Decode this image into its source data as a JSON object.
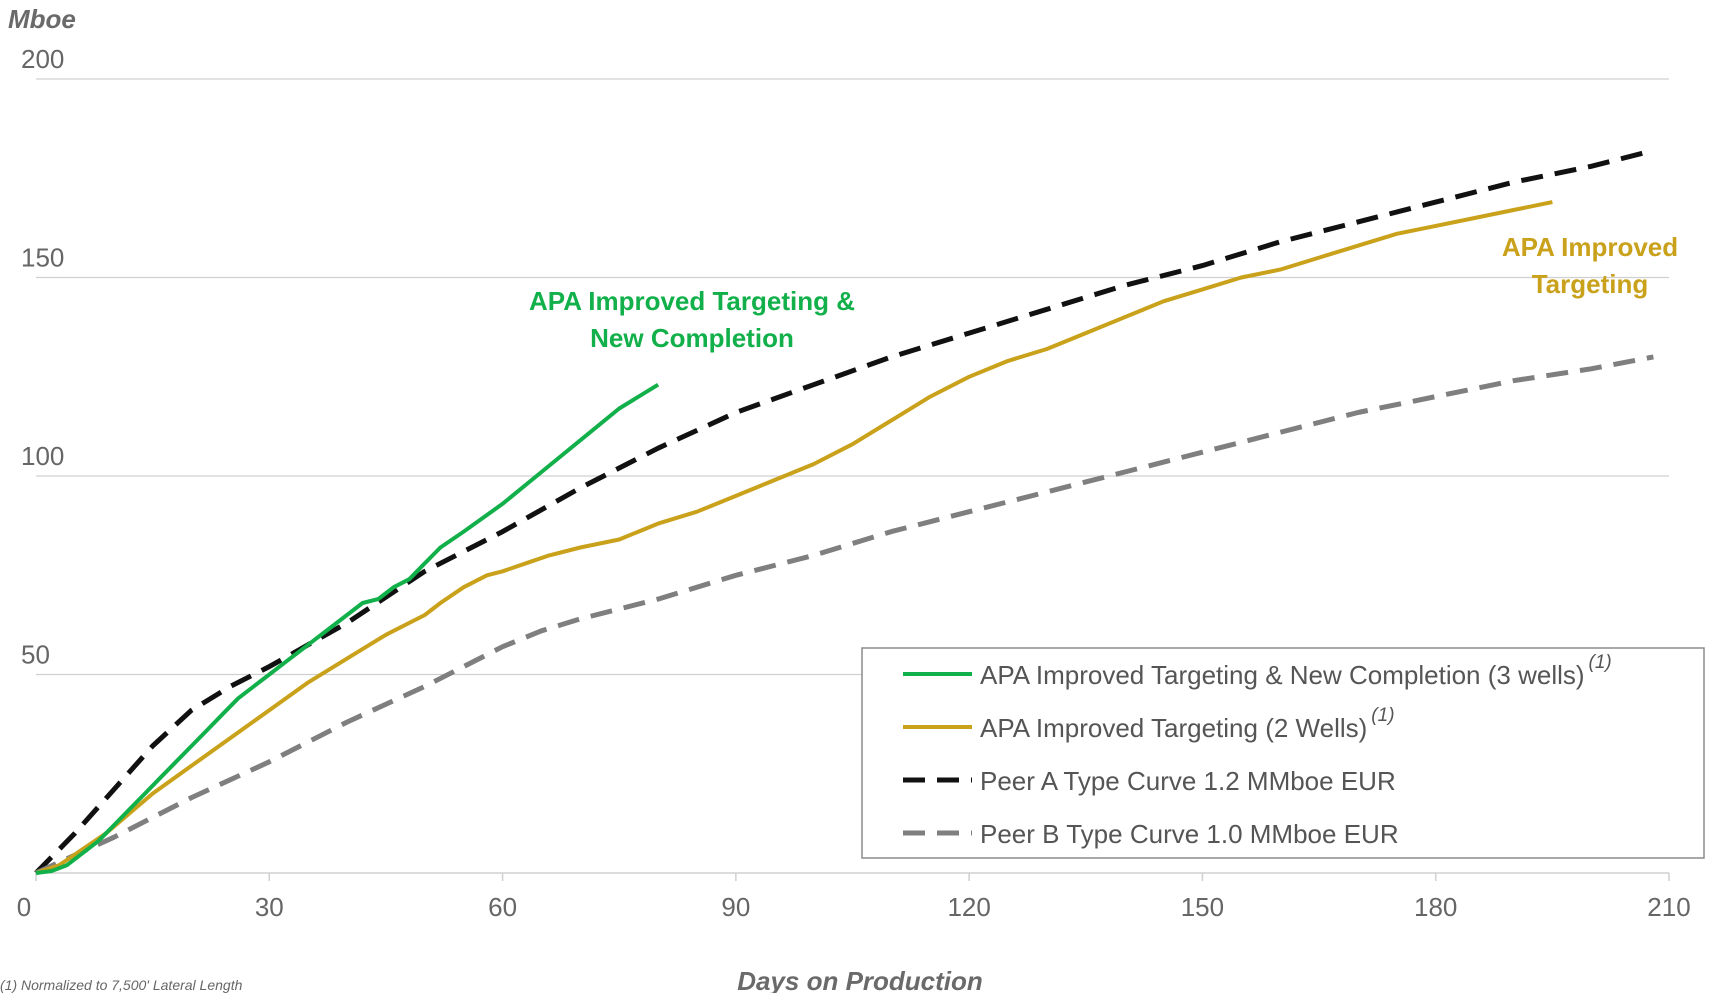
{
  "chart_data": {
    "type": "line",
    "title": "",
    "ylabel": "Mboe",
    "xlabel": "Days on Production",
    "xlim": [
      0,
      210
    ],
    "ylim": [
      0,
      200
    ],
    "x_ticks": [
      0,
      30,
      60,
      90,
      120,
      150,
      180,
      210
    ],
    "y_ticks": [
      50,
      100,
      150,
      200
    ],
    "grid": "horizontal",
    "legend_position": "bottom-right",
    "series": [
      {
        "name": "APA Improved Targeting & New Completion (3 wells)",
        "footnote_ref": "(1)",
        "color": "#12b04a",
        "style": "solid",
        "points": [
          [
            0,
            0
          ],
          [
            2,
            0.5
          ],
          [
            4,
            2
          ],
          [
            6,
            5
          ],
          [
            8,
            8
          ],
          [
            10,
            12
          ],
          [
            12,
            16
          ],
          [
            14,
            20
          ],
          [
            16,
            24
          ],
          [
            18,
            28
          ],
          [
            20,
            32
          ],
          [
            22,
            36
          ],
          [
            24,
            40
          ],
          [
            26,
            44
          ],
          [
            28,
            47
          ],
          [
            30,
            50
          ],
          [
            32,
            53
          ],
          [
            34,
            56
          ],
          [
            36,
            59
          ],
          [
            38,
            62
          ],
          [
            40,
            65
          ],
          [
            42,
            68
          ],
          [
            44,
            69
          ],
          [
            46,
            72
          ],
          [
            48,
            74
          ],
          [
            50,
            78
          ],
          [
            52,
            82
          ],
          [
            55,
            86
          ],
          [
            60,
            93
          ],
          [
            65,
            101
          ],
          [
            70,
            109
          ],
          [
            75,
            117
          ],
          [
            80,
            123
          ]
        ]
      },
      {
        "name": "APA Improved Targeting (2 Wells)",
        "footnote_ref": "(1)",
        "color": "#c9a11a",
        "style": "solid",
        "points": [
          [
            0,
            0
          ],
          [
            3,
            2
          ],
          [
            6,
            6
          ],
          [
            9,
            10
          ],
          [
            12,
            15
          ],
          [
            15,
            20
          ],
          [
            20,
            27
          ],
          [
            25,
            34
          ],
          [
            30,
            41
          ],
          [
            35,
            48
          ],
          [
            40,
            54
          ],
          [
            45,
            60
          ],
          [
            48,
            63
          ],
          [
            50,
            65
          ],
          [
            52,
            68
          ],
          [
            55,
            72
          ],
          [
            58,
            75
          ],
          [
            60,
            76
          ],
          [
            63,
            78
          ],
          [
            66,
            80
          ],
          [
            70,
            82
          ],
          [
            75,
            84
          ],
          [
            80,
            88
          ],
          [
            85,
            91
          ],
          [
            90,
            95
          ],
          [
            95,
            99
          ],
          [
            100,
            103
          ],
          [
            105,
            108
          ],
          [
            110,
            114
          ],
          [
            115,
            120
          ],
          [
            120,
            125
          ],
          [
            125,
            129
          ],
          [
            130,
            132
          ],
          [
            135,
            136
          ],
          [
            140,
            140
          ],
          [
            145,
            144
          ],
          [
            150,
            147
          ],
          [
            155,
            150
          ],
          [
            160,
            152
          ],
          [
            165,
            155
          ],
          [
            170,
            158
          ],
          [
            175,
            161
          ],
          [
            180,
            163
          ],
          [
            185,
            165
          ],
          [
            190,
            167
          ],
          [
            195,
            169
          ]
        ]
      },
      {
        "name": "Peer A Type Curve 1.2 MMboe EUR",
        "color": "#111111",
        "style": "dashed",
        "points": [
          [
            0,
            0
          ],
          [
            5,
            10
          ],
          [
            10,
            21
          ],
          [
            15,
            32
          ],
          [
            20,
            41
          ],
          [
            25,
            47
          ],
          [
            30,
            52
          ],
          [
            40,
            63
          ],
          [
            50,
            76
          ],
          [
            60,
            86
          ],
          [
            70,
            97
          ],
          [
            80,
            107
          ],
          [
            90,
            116
          ],
          [
            100,
            123
          ],
          [
            110,
            130
          ],
          [
            120,
            136
          ],
          [
            130,
            142
          ],
          [
            140,
            148
          ],
          [
            150,
            153
          ],
          [
            160,
            159
          ],
          [
            170,
            164
          ],
          [
            180,
            169
          ],
          [
            190,
            174
          ],
          [
            200,
            178
          ],
          [
            208,
            182
          ]
        ]
      },
      {
        "name": "Peer B Type Curve 1.0 MMboe EUR",
        "color": "#7f7f7f",
        "style": "dashed",
        "points": [
          [
            0,
            0
          ],
          [
            10,
            9
          ],
          [
            20,
            19
          ],
          [
            30,
            28
          ],
          [
            40,
            38
          ],
          [
            50,
            47
          ],
          [
            60,
            57
          ],
          [
            65,
            61
          ],
          [
            70,
            64
          ],
          [
            80,
            69
          ],
          [
            90,
            75
          ],
          [
            100,
            80
          ],
          [
            110,
            86
          ],
          [
            120,
            91
          ],
          [
            130,
            96
          ],
          [
            140,
            101
          ],
          [
            150,
            106
          ],
          [
            160,
            111
          ],
          [
            170,
            116
          ],
          [
            180,
            120
          ],
          [
            190,
            124
          ],
          [
            200,
            127
          ],
          [
            208,
            130
          ]
        ]
      }
    ],
    "annotations": [
      {
        "lines": [
          "APA Improved Targeting &",
          "New Completion"
        ],
        "color": "#12b04a"
      },
      {
        "lines": [
          "APA Improved",
          "Targeting"
        ],
        "color": "#c9a11a"
      }
    ]
  },
  "footnote": "(1) Normalized to 7,500' Lateral Length"
}
